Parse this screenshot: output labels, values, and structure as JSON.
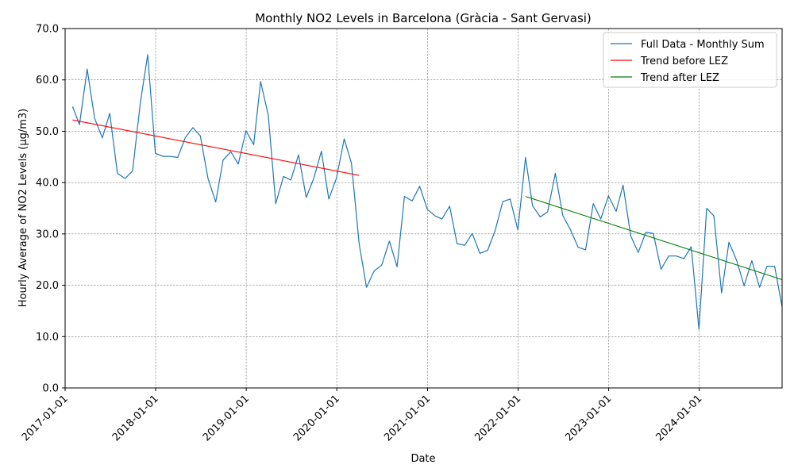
{
  "chart_data": {
    "type": "line",
    "title": "Monthly NO2 Levels in Barcelona (Gràcia - Sant Gervasi)",
    "xlabel": "Date",
    "ylabel": "Hourly Average of NO2 Levels (µg/m3)",
    "ylim": [
      0,
      70
    ],
    "xlim": [
      "2017-01-01",
      "2024-11-30"
    ],
    "yticks": [
      "0.0",
      "10.0",
      "20.0",
      "30.0",
      "40.0",
      "50.0",
      "60.0",
      "70.0"
    ],
    "xticks": [
      "2017-01-01",
      "2018-01-01",
      "2019-01-01",
      "2020-01-01",
      "2021-01-01",
      "2022-01-01",
      "2023-01-01",
      "2024-01-01"
    ],
    "grid": true,
    "legend_position": "top-right",
    "series": [
      {
        "name": "Full Data - Monthly Sum",
        "color": "#1f77b4",
        "x": [
          "2017-01-31",
          "2017-02-28",
          "2017-03-31",
          "2017-04-30",
          "2017-05-31",
          "2017-06-30",
          "2017-07-31",
          "2017-08-31",
          "2017-09-30",
          "2017-10-31",
          "2017-11-30",
          "2017-12-31",
          "2018-01-31",
          "2018-02-28",
          "2018-03-31",
          "2018-04-30",
          "2018-05-31",
          "2018-06-30",
          "2018-07-31",
          "2018-08-31",
          "2018-09-30",
          "2018-10-31",
          "2018-11-30",
          "2018-12-31",
          "2019-01-31",
          "2019-02-28",
          "2019-03-31",
          "2019-04-30",
          "2019-05-31",
          "2019-06-30",
          "2019-07-31",
          "2019-08-31",
          "2019-09-30",
          "2019-10-31",
          "2019-11-30",
          "2019-12-31",
          "2020-01-31",
          "2020-02-29",
          "2020-03-31",
          "2020-04-30",
          "2020-05-31",
          "2020-06-30",
          "2020-07-31",
          "2020-08-31",
          "2020-09-30",
          "2020-10-31",
          "2020-11-30",
          "2020-12-31",
          "2021-01-31",
          "2021-02-28",
          "2021-03-31",
          "2021-04-30",
          "2021-05-31",
          "2021-06-30",
          "2021-07-31",
          "2021-08-31",
          "2021-09-30",
          "2021-10-31",
          "2021-11-30",
          "2021-12-31",
          "2022-01-31",
          "2022-02-28",
          "2022-03-31",
          "2022-04-30",
          "2022-05-31",
          "2022-06-30",
          "2022-07-31",
          "2022-08-31",
          "2022-09-30",
          "2022-10-31",
          "2022-11-30",
          "2022-12-31",
          "2023-01-31",
          "2023-02-28",
          "2023-03-31",
          "2023-04-30",
          "2023-05-31",
          "2023-06-30",
          "2023-07-31",
          "2023-08-31",
          "2023-09-30",
          "2023-10-31",
          "2023-11-30",
          "2023-12-31",
          "2024-01-31",
          "2024-02-29",
          "2024-03-31",
          "2024-04-30",
          "2024-05-31",
          "2024-06-30",
          "2024-07-31",
          "2024-08-31",
          "2024-09-30",
          "2024-10-31",
          "2024-11-30"
        ],
        "y": [
          54.8,
          51.3,
          62.1,
          52.5,
          48.7,
          53.5,
          41.8,
          40.8,
          42.3,
          55.5,
          64.9,
          45.7,
          45.1,
          45.1,
          44.9,
          48.7,
          50.7,
          49.1,
          40.8,
          36.2,
          44.4,
          46.0,
          43.6,
          50.1,
          47.4,
          59.7,
          53.1,
          35.9,
          41.2,
          40.5,
          45.4,
          37.1,
          40.8,
          46.1,
          36.8,
          40.9,
          48.5,
          43.8,
          28.1,
          19.6,
          22.8,
          23.9,
          28.6,
          23.6,
          37.3,
          36.4,
          39.3,
          34.8,
          33.5,
          32.9,
          35.4,
          28.1,
          27.8,
          30.1,
          26.2,
          26.8,
          30.6,
          36.3,
          36.8,
          30.8,
          44.9,
          35.5,
          33.3,
          34.3,
          41.8,
          33.6,
          30.8,
          27.4,
          26.9,
          35.9,
          32.9,
          37.4,
          34.4,
          39.5,
          29.6,
          26.4,
          30.3,
          30.1,
          23.1,
          25.7,
          25.7,
          25.2,
          27.5,
          11.4,
          35.0,
          33.5,
          18.5,
          28.4,
          24.8,
          19.9,
          24.8,
          19.6,
          23.7,
          23.7,
          15.8
        ]
      },
      {
        "name": "Trend before LEZ",
        "color": "#ff0000",
        "x": [
          "2017-01-31",
          "2020-03-31"
        ],
        "y": [
          52.2,
          41.4
        ]
      },
      {
        "name": "Trend after LEZ",
        "color": "#008000",
        "x": [
          "2022-01-31",
          "2024-11-30"
        ],
        "y": [
          37.3,
          21.1
        ]
      }
    ]
  }
}
